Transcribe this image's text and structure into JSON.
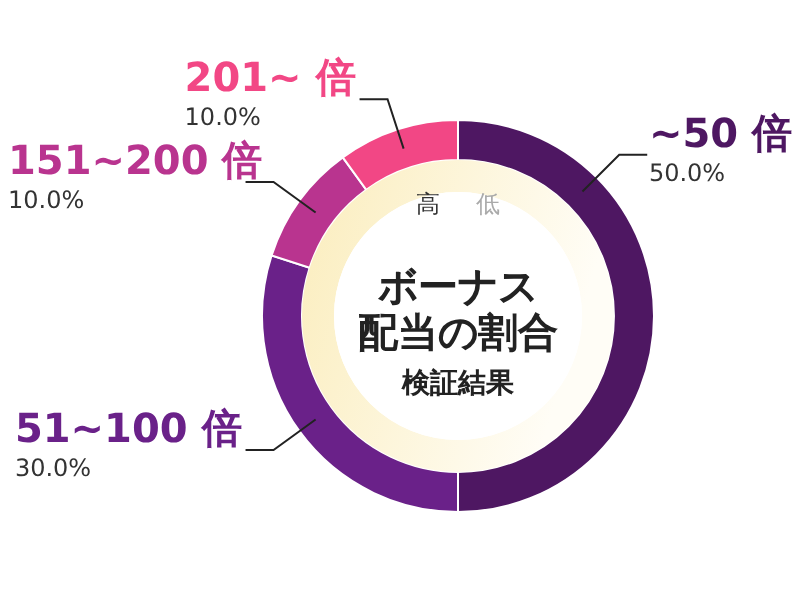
{
  "chart_data": {
    "type": "donut",
    "title": "ボーナス配当の割合",
    "subtitle": "検証結果",
    "categories": [
      "~50 倍",
      "51~100 倍",
      "151~200 倍",
      "201~ 倍"
    ],
    "values": [
      50,
      30,
      10,
      10
    ],
    "colors": [
      "#4e1762",
      "#6a2189",
      "#b9348f",
      "#f24785"
    ],
    "value_labels": [
      "50.0%",
      "30.0%",
      "10.0%",
      "10.0%"
    ],
    "annotations": [
      "高",
      "低"
    ]
  }
}
